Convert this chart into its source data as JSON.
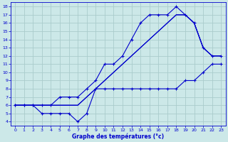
{
  "title": "Graphe des températures (°c)",
  "bg_color": "#cce8e8",
  "grid_color": "#aacccc",
  "line_color": "#0000cc",
  "xlim": [
    -0.5,
    23.5
  ],
  "ylim": [
    3.5,
    18.5
  ],
  "xticks": [
    0,
    1,
    2,
    3,
    4,
    5,
    6,
    7,
    8,
    9,
    10,
    11,
    12,
    13,
    14,
    15,
    16,
    17,
    18,
    19,
    20,
    21,
    22,
    23
  ],
  "yticks": [
    4,
    5,
    6,
    7,
    8,
    9,
    10,
    11,
    12,
    13,
    14,
    15,
    16,
    17,
    18
  ],
  "line1_x": [
    0,
    1,
    2,
    3,
    4,
    5,
    6,
    7,
    8,
    9,
    10,
    11,
    12,
    13,
    14,
    15,
    16,
    17,
    18,
    19,
    20,
    21,
    22,
    23
  ],
  "line1_y": [
    6,
    6,
    6,
    5,
    5,
    5,
    5,
    4,
    5,
    8,
    8,
    8,
    8,
    8,
    8,
    8,
    8,
    8,
    8,
    9,
    9,
    10,
    11,
    11
  ],
  "line1_markers": true,
  "line2_x": [
    0,
    1,
    2,
    3,
    4,
    5,
    6,
    7,
    8,
    9,
    10,
    11,
    12,
    13,
    14,
    15,
    16,
    17,
    18,
    19,
    20,
    21,
    22,
    23
  ],
  "line2_y": [
    6,
    6,
    6,
    6,
    6,
    6,
    6,
    6,
    7,
    8,
    9,
    10,
    11,
    12,
    13,
    14,
    15,
    16,
    17,
    17,
    16,
    13,
    12,
    12
  ],
  "line2_markers": false,
  "line3_x": [
    0,
    1,
    2,
    3,
    4,
    5,
    6,
    7,
    8,
    9,
    10,
    11,
    12,
    13,
    14,
    15,
    16,
    17,
    18,
    19,
    20,
    21,
    22,
    23
  ],
  "line3_y": [
    6,
    6,
    6,
    6,
    6,
    6,
    6,
    6,
    7,
    8,
    9,
    10,
    11,
    12,
    13,
    14,
    15,
    16,
    17,
    17,
    16,
    13,
    12,
    12
  ],
  "line3_markers": false,
  "line4_x": [
    0,
    1,
    2,
    3,
    4,
    5,
    6,
    7,
    8,
    9,
    10,
    11,
    12,
    13,
    14,
    15,
    16,
    17,
    18,
    19,
    20,
    21,
    22,
    23
  ],
  "line4_y": [
    6,
    6,
    6,
    6,
    6,
    7,
    7,
    7,
    8,
    9,
    11,
    11,
    12,
    14,
    16,
    17,
    17,
    17,
    18,
    17,
    16,
    13,
    12,
    12
  ],
  "line4_markers": true
}
